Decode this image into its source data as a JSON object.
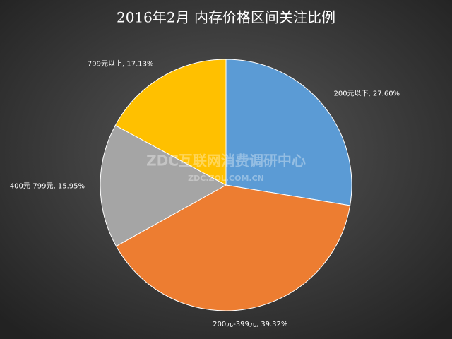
{
  "chart_data": {
    "type": "pie",
    "title": "2016年2月 内存价格区间关注比例",
    "values": [
      27.6,
      39.32,
      15.95,
      17.13
    ],
    "value_labels": [
      "200元以下, 27.60%",
      "200元-399元, 39.32%",
      "400元-799元, 15.95%",
      "799元以上, 17.13%"
    ],
    "colors": [
      "#5b9bd5",
      "#ed7d31",
      "#a5a5a5",
      "#ffc000"
    ],
    "watermark": [
      "ZDC互联网消费调研中心",
      "ZDC.ZOL.COM.CN"
    ]
  }
}
